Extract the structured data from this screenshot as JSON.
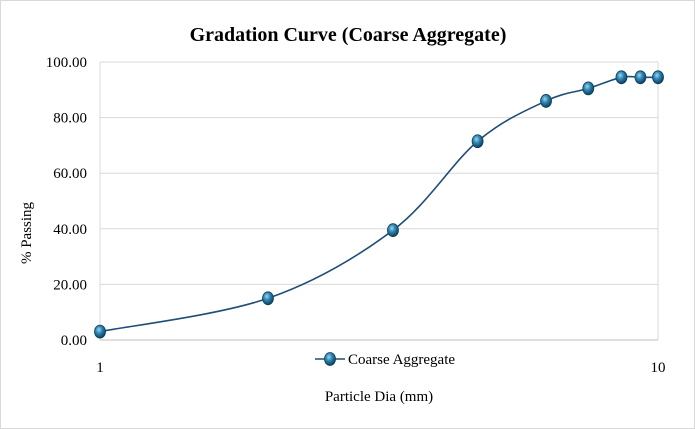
{
  "chart_data": {
    "type": "line",
    "title": "Gradation Curve (Coarse Aggregate)",
    "xlabel": "Particle Dia (mm)",
    "ylabel": "% Passing",
    "x_scale": "log",
    "xlim": [
      1,
      10
    ],
    "ylim": [
      0,
      100
    ],
    "x_ticks": [
      "1",
      "10"
    ],
    "y_ticks": [
      "0.00",
      "20.00",
      "40.00",
      "60.00",
      "80.00",
      "100.00"
    ],
    "grid": "horizontal",
    "legend_position": "bottom",
    "series": [
      {
        "name": "Coarse Aggregate",
        "color": "#1f4e79",
        "x": [
          1.0,
          2.0,
          3.35,
          4.75,
          6.3,
          7.5,
          8.6,
          9.3,
          10.0
        ],
        "y": [
          3.0,
          15.0,
          39.5,
          71.5,
          86.0,
          90.5,
          94.5,
          94.5,
          94.5
        ]
      }
    ]
  }
}
